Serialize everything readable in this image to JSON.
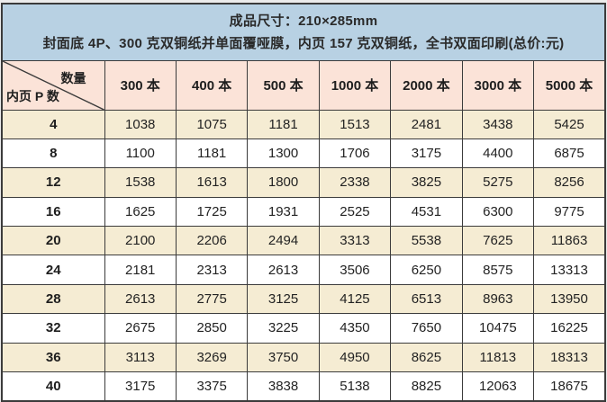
{
  "banner": {
    "line1": "成品尺寸：210×285mm",
    "line2": "封面底 4P、300 克双铜纸并单面覆哑膜，内页 157 克双铜纸，全书双面印刷(总价:元)"
  },
  "corner": {
    "top_label": "数量",
    "bottom_label": "内页 P 数"
  },
  "columns": [
    "300 本",
    "400 本",
    "500 本",
    "1000 本",
    "2000 本",
    "3000 本",
    "5000 本"
  ],
  "rows": [
    {
      "pages": "4",
      "prices": [
        "1038",
        "1075",
        "1181",
        "1513",
        "2481",
        "3438",
        "5425"
      ]
    },
    {
      "pages": "8",
      "prices": [
        "1100",
        "1181",
        "1300",
        "1706",
        "3175",
        "4400",
        "6875"
      ]
    },
    {
      "pages": "12",
      "prices": [
        "1538",
        "1613",
        "1800",
        "2338",
        "3825",
        "5275",
        "8256"
      ]
    },
    {
      "pages": "16",
      "prices": [
        "1625",
        "1725",
        "1931",
        "2525",
        "4531",
        "6300",
        "9775"
      ]
    },
    {
      "pages": "20",
      "prices": [
        "2100",
        "2206",
        "2494",
        "3313",
        "5538",
        "7625",
        "11863"
      ]
    },
    {
      "pages": "24",
      "prices": [
        "2181",
        "2313",
        "2613",
        "3506",
        "6250",
        "8575",
        "13313"
      ]
    },
    {
      "pages": "28",
      "prices": [
        "2613",
        "2775",
        "3125",
        "4125",
        "6513",
        "8963",
        "13950"
      ]
    },
    {
      "pages": "32",
      "prices": [
        "2675",
        "2850",
        "3225",
        "4350",
        "7650",
        "10475",
        "16225"
      ]
    },
    {
      "pages": "36",
      "prices": [
        "3113",
        "3269",
        "3750",
        "4950",
        "8625",
        "11813",
        "18313"
      ]
    },
    {
      "pages": "40",
      "prices": [
        "3175",
        "3375",
        "3838",
        "5138",
        "8825",
        "12063",
        "18675"
      ]
    }
  ],
  "colors": {
    "banner_bg": "#b8d1e3",
    "header_bg": "#fbe3d8",
    "stripe_bg": "#f5ecd3",
    "plain_bg": "#ffffff",
    "border": "#3b3b3b",
    "text": "#1e1e1e"
  }
}
